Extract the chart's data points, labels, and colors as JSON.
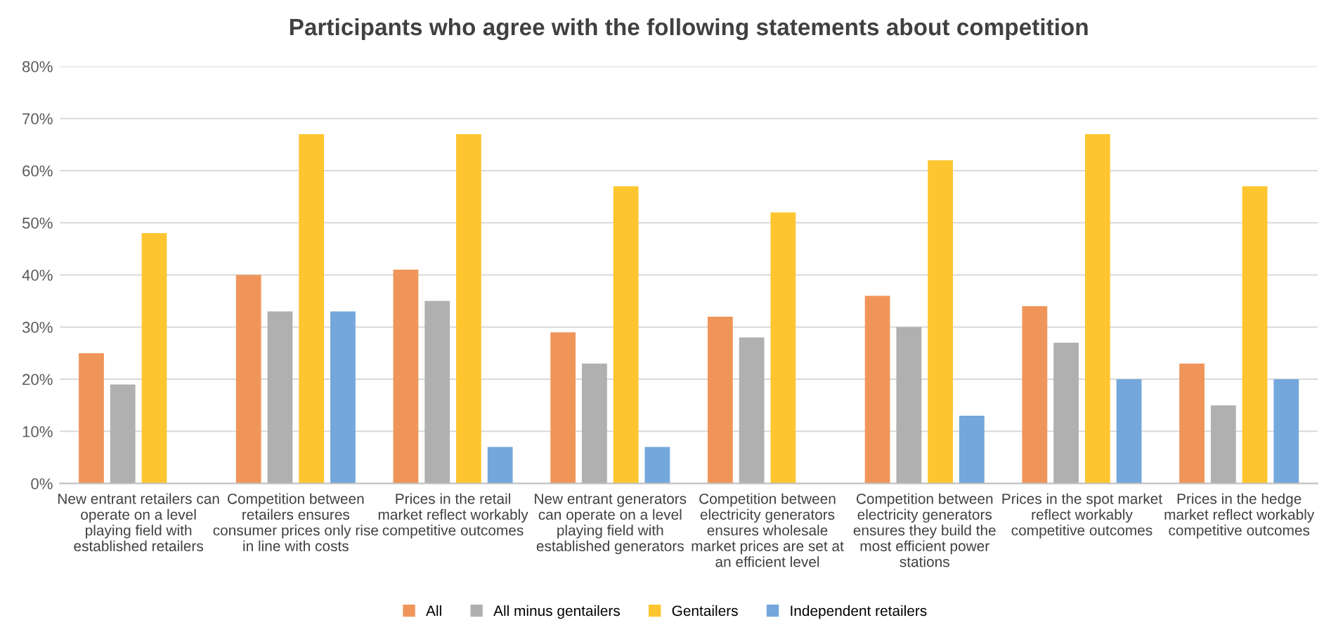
{
  "chart_data": {
    "type": "bar",
    "title": "Participants who agree with the following statements about competition",
    "categories": [
      "New entrant retailers can\noperate on a level\nplaying field with\nestablished retailers",
      "Competition between\nretailers ensures\nconsumer prices only rise\nin line with costs",
      "Prices in the retail\nmarket reflect workably\ncompetitive outcomes",
      "New entrant generators\ncan operate on a level\nplaying field with\nestablished generators",
      "Competition between\nelectricity generators\nensures wholesale\nmarket prices are set at\nan efficient level",
      "Competition between\nelectricity generators\nensures they build the\nmost efficient power\nstations",
      "Prices in the spot market\nreflect workably\ncompetitive outcomes",
      "Prices in the hedge\nmarket reflect workably\ncompetitive outcomes"
    ],
    "series": [
      {
        "name": "All",
        "color": "#f0955a",
        "values": [
          25,
          40,
          41,
          29,
          32,
          36,
          34,
          23
        ]
      },
      {
        "name": "All minus gentailers",
        "color": "#b0b0b0",
        "values": [
          19,
          33,
          35,
          23,
          28,
          30,
          27,
          15
        ]
      },
      {
        "name": "Gentailers",
        "color": "#fdc630",
        "values": [
          48,
          67,
          67,
          57,
          52,
          62,
          67,
          57
        ]
      },
      {
        "name": "Independent retailers",
        "color": "#74a7dc",
        "values": [
          null,
          33,
          7,
          7,
          null,
          13,
          20,
          20
        ]
      }
    ],
    "ylim": [
      0,
      80
    ],
    "yticks": [
      {
        "value": 0,
        "label": "0%"
      },
      {
        "value": 10,
        "label": "10%"
      },
      {
        "value": 20,
        "label": "20%"
      },
      {
        "value": 30,
        "label": "30%"
      },
      {
        "value": 40,
        "label": "40%"
      },
      {
        "value": 50,
        "label": "50%"
      },
      {
        "value": 60,
        "label": "60%"
      },
      {
        "value": 70,
        "label": "70%"
      },
      {
        "value": 80,
        "label": "80%"
      }
    ],
    "grid": "y",
    "legend": "bottom"
  }
}
